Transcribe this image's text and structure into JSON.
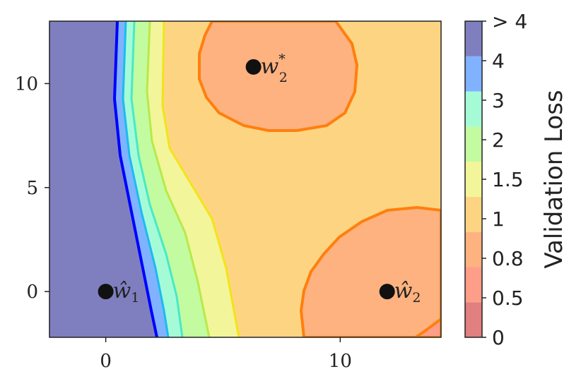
{
  "chart_data": {
    "type": "contour",
    "xlim": [
      -2.4,
      14.3
    ],
    "ylim": [
      -2.2,
      13
    ],
    "x_ticks": [
      0,
      10
    ],
    "y_ticks": [
      0,
      5,
      10
    ],
    "colorbar": {
      "title": "Validation Loss",
      "labels": [
        "0",
        "0.5",
        "0.8",
        "1",
        "1.5",
        "2",
        "3",
        "4",
        "> 4"
      ],
      "colors": [
        "#e27f7f",
        "#ff9e88",
        "#fdb27f",
        "#fdd582",
        "#f2f59a",
        "#c2fba0",
        "#a6fbd7",
        "#81b2ff",
        "#7f7fc0"
      ]
    },
    "points": [
      {
        "label": "ŵ",
        "sub": "1",
        "sup": "",
        "x": 0,
        "y": 0
      },
      {
        "label": "ŵ",
        "sub": "2",
        "sup": "",
        "x": 12,
        "y": 0
      },
      {
        "label": "w",
        "sub": "2",
        "sup": "*",
        "x": 6.3,
        "y": 10.8
      }
    ]
  }
}
